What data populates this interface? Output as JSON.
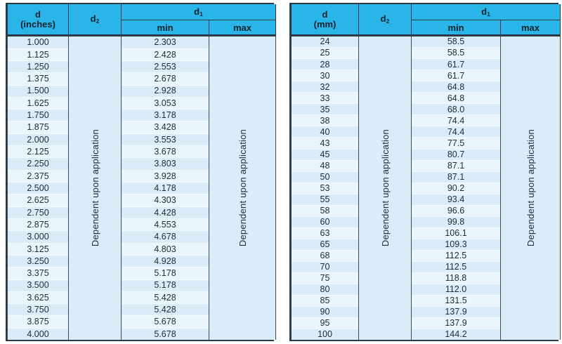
{
  "tables": [
    {
      "name": "inches",
      "header": {
        "d_line1": "d",
        "d_line2": "(inches)",
        "d2_base": "d",
        "d2_sub": "2",
        "d1_base": "d",
        "d1_sub": "1",
        "min": "min",
        "max": "max"
      },
      "d2_text": "Dependent upon application",
      "max_text": "Dependent upon application",
      "rows": [
        {
          "d": "1.000",
          "d1_min": "2.303"
        },
        {
          "d": "1.125",
          "d1_min": "2.428"
        },
        {
          "d": "1.250",
          "d1_min": "2.553"
        },
        {
          "d": "1.375",
          "d1_min": "2.678"
        },
        {
          "d": "1.500",
          "d1_min": "2.928"
        },
        {
          "d": "1.625",
          "d1_min": "3.053"
        },
        {
          "d": "1.750",
          "d1_min": "3.178"
        },
        {
          "d": "1.875",
          "d1_min": "3.428"
        },
        {
          "d": "2.000",
          "d1_min": "3.553"
        },
        {
          "d": "2.125",
          "d1_min": "3.678"
        },
        {
          "d": "2.250",
          "d1_min": "3.803"
        },
        {
          "d": "2.375",
          "d1_min": "3.928"
        },
        {
          "d": "2.500",
          "d1_min": "4.178"
        },
        {
          "d": "2.625",
          "d1_min": "4.303"
        },
        {
          "d": "2.750",
          "d1_min": "4.428"
        },
        {
          "d": "2.875",
          "d1_min": "4.553"
        },
        {
          "d": "3.000",
          "d1_min": "4.678"
        },
        {
          "d": "3.125",
          "d1_min": "4.803"
        },
        {
          "d": "3.250",
          "d1_min": "4.928"
        },
        {
          "d": "3.375",
          "d1_min": "5.178"
        },
        {
          "d": "3.500",
          "d1_min": "5.178"
        },
        {
          "d": "3.625",
          "d1_min": "5.428"
        },
        {
          "d": "3.750",
          "d1_min": "5.428"
        },
        {
          "d": "3.875",
          "d1_min": "5.678"
        },
        {
          "d": "4.000",
          "d1_min": "5.678"
        }
      ]
    },
    {
      "name": "mm",
      "header": {
        "d_line1": "d",
        "d_line2": "(mm)",
        "d2_base": "d",
        "d2_sub": "2",
        "d1_base": "d",
        "d1_sub": "1",
        "min": "min",
        "max": "max"
      },
      "d2_text": "Dependent upon application",
      "max_text": "Dependent upon application",
      "rows": [
        {
          "d": "24",
          "d1_min": "58.5"
        },
        {
          "d": "25",
          "d1_min": "58.5"
        },
        {
          "d": "28",
          "d1_min": "61.7"
        },
        {
          "d": "30",
          "d1_min": "61.7"
        },
        {
          "d": "32",
          "d1_min": "64.8"
        },
        {
          "d": "33",
          "d1_min": "64.8"
        },
        {
          "d": "35",
          "d1_min": "68.0"
        },
        {
          "d": "38",
          "d1_min": "74.4"
        },
        {
          "d": "40",
          "d1_min": "74.4"
        },
        {
          "d": "43",
          "d1_min": "77.5"
        },
        {
          "d": "45",
          "d1_min": "80.7"
        },
        {
          "d": "48",
          "d1_min": "87.1"
        },
        {
          "d": "50",
          "d1_min": "87.1"
        },
        {
          "d": "53",
          "d1_min": "90.2"
        },
        {
          "d": "55",
          "d1_min": "93.4"
        },
        {
          "d": "58",
          "d1_min": "96.6"
        },
        {
          "d": "60",
          "d1_min": "99.8"
        },
        {
          "d": "63",
          "d1_min": "106.1"
        },
        {
          "d": "65",
          "d1_min": "109.3"
        },
        {
          "d": "68",
          "d1_min": "112.5"
        },
        {
          "d": "70",
          "d1_min": "112.5"
        },
        {
          "d": "75",
          "d1_min": "118.8"
        },
        {
          "d": "80",
          "d1_min": "112.0"
        },
        {
          "d": "85",
          "d1_min": "131.5"
        },
        {
          "d": "90",
          "d1_min": "137.9"
        },
        {
          "d": "95",
          "d1_min": "137.9"
        },
        {
          "d": "100",
          "d1_min": "144.2"
        }
      ]
    }
  ],
  "colors": {
    "header_bg": "#29b5e8",
    "border_dark": "#2b3944",
    "row_odd": "#d9ecf8",
    "row_even": "#eaf4fb",
    "panel_bg": "#d9ecf8"
  }
}
